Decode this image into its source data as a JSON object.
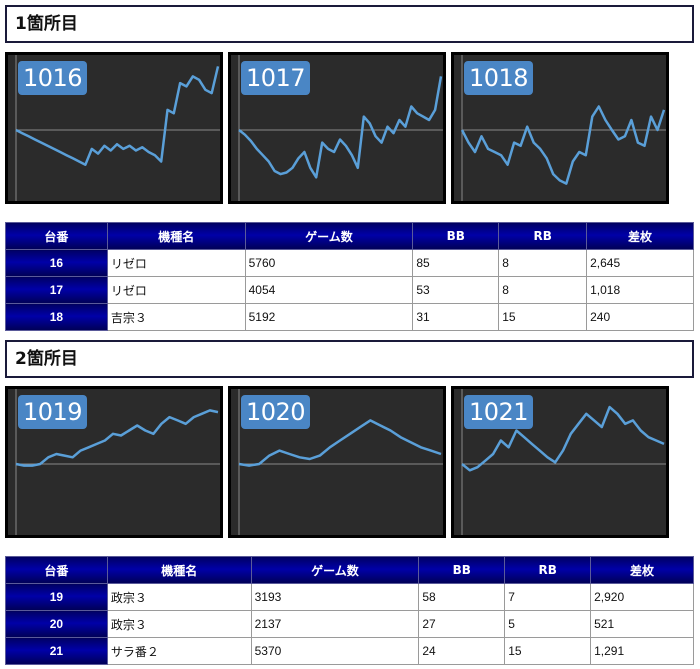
{
  "sections": [
    {
      "title": "1箇所目",
      "charts": [
        {
          "label": "1016",
          "values": [
            0,
            -2,
            -4,
            -6,
            -8,
            -10,
            -12,
            -14,
            -16,
            -18,
            -20,
            -22,
            -12,
            -15,
            -10,
            -13,
            -9,
            -12,
            -10,
            -13,
            -11,
            -14,
            -16,
            -20,
            12,
            10,
            28,
            26,
            32,
            30,
            24,
            22,
            38
          ]
        },
        {
          "label": "1017",
          "values": [
            0,
            -3,
            -7,
            -12,
            -16,
            -20,
            -26,
            -28,
            -27,
            -24,
            -18,
            -14,
            -24,
            -30,
            -8,
            -12,
            -14,
            -6,
            -10,
            -16,
            -24,
            8,
            4,
            -4,
            -8,
            2,
            -2,
            6,
            2,
            14,
            10,
            8,
            6,
            12,
            32
          ]
        },
        {
          "label": "1018",
          "values": [
            0,
            -8,
            -14,
            -4,
            -12,
            -14,
            -16,
            -22,
            -8,
            -10,
            2,
            -8,
            -12,
            -18,
            -28,
            -32,
            -34,
            -20,
            -14,
            -16,
            8,
            14,
            6,
            0,
            -6,
            -4,
            6,
            -8,
            -10,
            8,
            0,
            12
          ]
        }
      ],
      "table": {
        "headers": [
          "台番",
          "機種名",
          "ゲーム数",
          "BB",
          "RB",
          "差枚"
        ],
        "rows": [
          [
            "16",
            "リゼロ",
            "5760",
            "85",
            "8",
            "2,645"
          ],
          [
            "17",
            "リゼロ",
            "4054",
            "53",
            "8",
            "1,018"
          ],
          [
            "18",
            "吉宗３",
            "5192",
            "31",
            "15",
            "240"
          ]
        ]
      }
    },
    {
      "title": "2箇所目",
      "charts": [
        {
          "label": "1019",
          "values": [
            0,
            -1,
            -1,
            0,
            4,
            6,
            5,
            4,
            8,
            10,
            12,
            14,
            18,
            17,
            20,
            23,
            20,
            18,
            24,
            28,
            26,
            24,
            28,
            30,
            32,
            31
          ]
        },
        {
          "label": "1020",
          "values": [
            0,
            -1,
            0,
            5,
            8,
            6,
            4,
            3,
            5,
            10,
            14,
            18,
            22,
            26,
            23,
            20,
            16,
            13,
            10,
            8,
            6
          ]
        },
        {
          "label": "1021",
          "values": [
            0,
            -4,
            -2,
            2,
            6,
            14,
            10,
            20,
            16,
            12,
            8,
            4,
            1,
            8,
            18,
            24,
            30,
            26,
            22,
            34,
            30,
            24,
            26,
            20,
            16,
            14,
            12
          ]
        }
      ],
      "table": {
        "headers": [
          "台番",
          "機種名",
          "ゲーム数",
          "BB",
          "RB",
          "差枚"
        ],
        "rows": [
          [
            "19",
            "政宗３",
            "3193",
            "58",
            "7",
            "2,920"
          ],
          [
            "20",
            "政宗３",
            "2137",
            "27",
            "5",
            "521"
          ],
          [
            "21",
            "サラ番２",
            "5370",
            "24",
            "15",
            "1,291"
          ]
        ]
      }
    }
  ],
  "chart_data": [
    {
      "type": "line",
      "title": "1016",
      "series": [
        {
          "values": [
            0,
            -2,
            -4,
            -6,
            -8,
            -10,
            -12,
            -14,
            -16,
            -18,
            -20,
            -22,
            -12,
            -15,
            -10,
            -13,
            -9,
            -12,
            -10,
            -13,
            -11,
            -14,
            -16,
            -20,
            12,
            10,
            28,
            26,
            32,
            30,
            24,
            22,
            38
          ]
        }
      ]
    },
    {
      "type": "line",
      "title": "1017",
      "series": [
        {
          "values": [
            0,
            -3,
            -7,
            -12,
            -16,
            -20,
            -26,
            -28,
            -27,
            -24,
            -18,
            -14,
            -24,
            -30,
            -8,
            -12,
            -14,
            -6,
            -10,
            -16,
            -24,
            8,
            4,
            -4,
            -8,
            2,
            -2,
            6,
            2,
            14,
            10,
            8,
            6,
            12,
            32
          ]
        }
      ]
    },
    {
      "type": "line",
      "title": "1018",
      "series": [
        {
          "values": [
            0,
            -8,
            -14,
            -4,
            -12,
            -14,
            -16,
            -22,
            -8,
            -10,
            2,
            -8,
            -12,
            -18,
            -28,
            -32,
            -34,
            -20,
            -14,
            -16,
            8,
            14,
            6,
            0,
            -6,
            -4,
            6,
            -8,
            -10,
            8,
            0,
            12
          ]
        }
      ]
    },
    {
      "type": "line",
      "title": "1019",
      "series": [
        {
          "values": [
            0,
            -1,
            -1,
            0,
            4,
            6,
            5,
            4,
            8,
            10,
            12,
            14,
            18,
            17,
            20,
            23,
            20,
            18,
            24,
            28,
            26,
            24,
            28,
            30,
            32,
            31
          ]
        }
      ]
    },
    {
      "type": "line",
      "title": "1020",
      "series": [
        {
          "values": [
            0,
            -1,
            0,
            5,
            8,
            6,
            4,
            3,
            5,
            10,
            14,
            18,
            22,
            26,
            23,
            20,
            16,
            13,
            10,
            8,
            6
          ]
        }
      ]
    },
    {
      "type": "line",
      "title": "1021",
      "series": [
        {
          "values": [
            0,
            -4,
            -2,
            2,
            6,
            14,
            10,
            20,
            16,
            12,
            8,
            4,
            1,
            8,
            18,
            24,
            30,
            26,
            22,
            34,
            30,
            24,
            26,
            20,
            16,
            14,
            12
          ]
        }
      ]
    }
  ],
  "colors": {
    "line": "#5a9fd8",
    "chart_bg": "#2b2b2b",
    "zero_line": "#8a8a8a",
    "label_bg": "#4a86c5",
    "header_bg": "#0000a0"
  }
}
